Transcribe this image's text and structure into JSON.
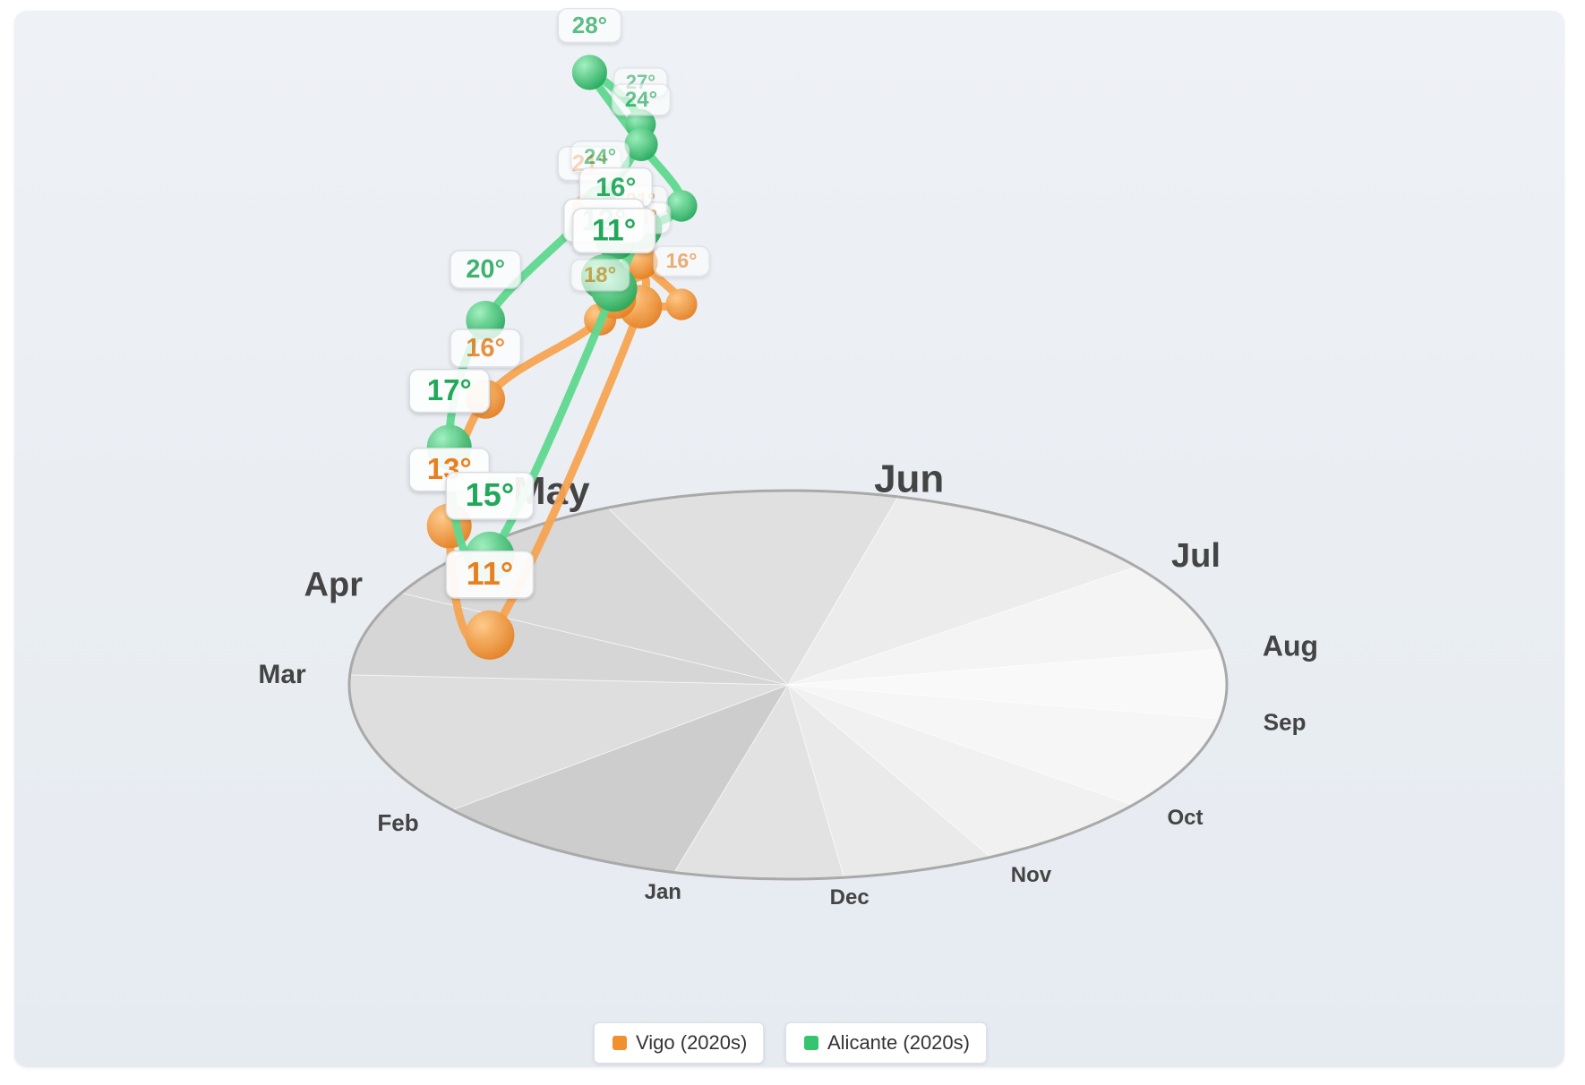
{
  "chart_data": {
    "type": "polar-3d-line",
    "months": [
      "Jan",
      "Feb",
      "Mar",
      "Apr",
      "May",
      "Jun",
      "Jul",
      "Aug",
      "Sep",
      "Oct",
      "Nov",
      "Dec"
    ],
    "series": [
      {
        "name": "Vigo (2020s)",
        "color": "#f0902e",
        "values": [
          11,
          11,
          13,
          16,
          18,
          21,
          21,
          18,
          16,
          13,
          12,
          11
        ],
        "value_labels": [
          "",
          "11°",
          "13°",
          "16°",
          "18°",
          "21°",
          "21°",
          "18°",
          "16°",
          "",
          "",
          ""
        ]
      },
      {
        "name": "Alicante (2020s)",
        "color": "#36c46f",
        "values": [
          15,
          15,
          17,
          20,
          24,
          27,
          28,
          24,
          21,
          16,
          12,
          11
        ],
        "value_labels": [
          "",
          "15°",
          "17°",
          "20°",
          "24°",
          "27°",
          "28°",
          "24°",
          "",
          "16°",
          "12°",
          "11°"
        ]
      }
    ],
    "legend": [
      "Vigo (2020s)",
      "Alicante (2020s)"
    ],
    "legend_position": "bottom-center",
    "base": "12-month polar disc, shaded from dark (winter) to light (summer)"
  }
}
